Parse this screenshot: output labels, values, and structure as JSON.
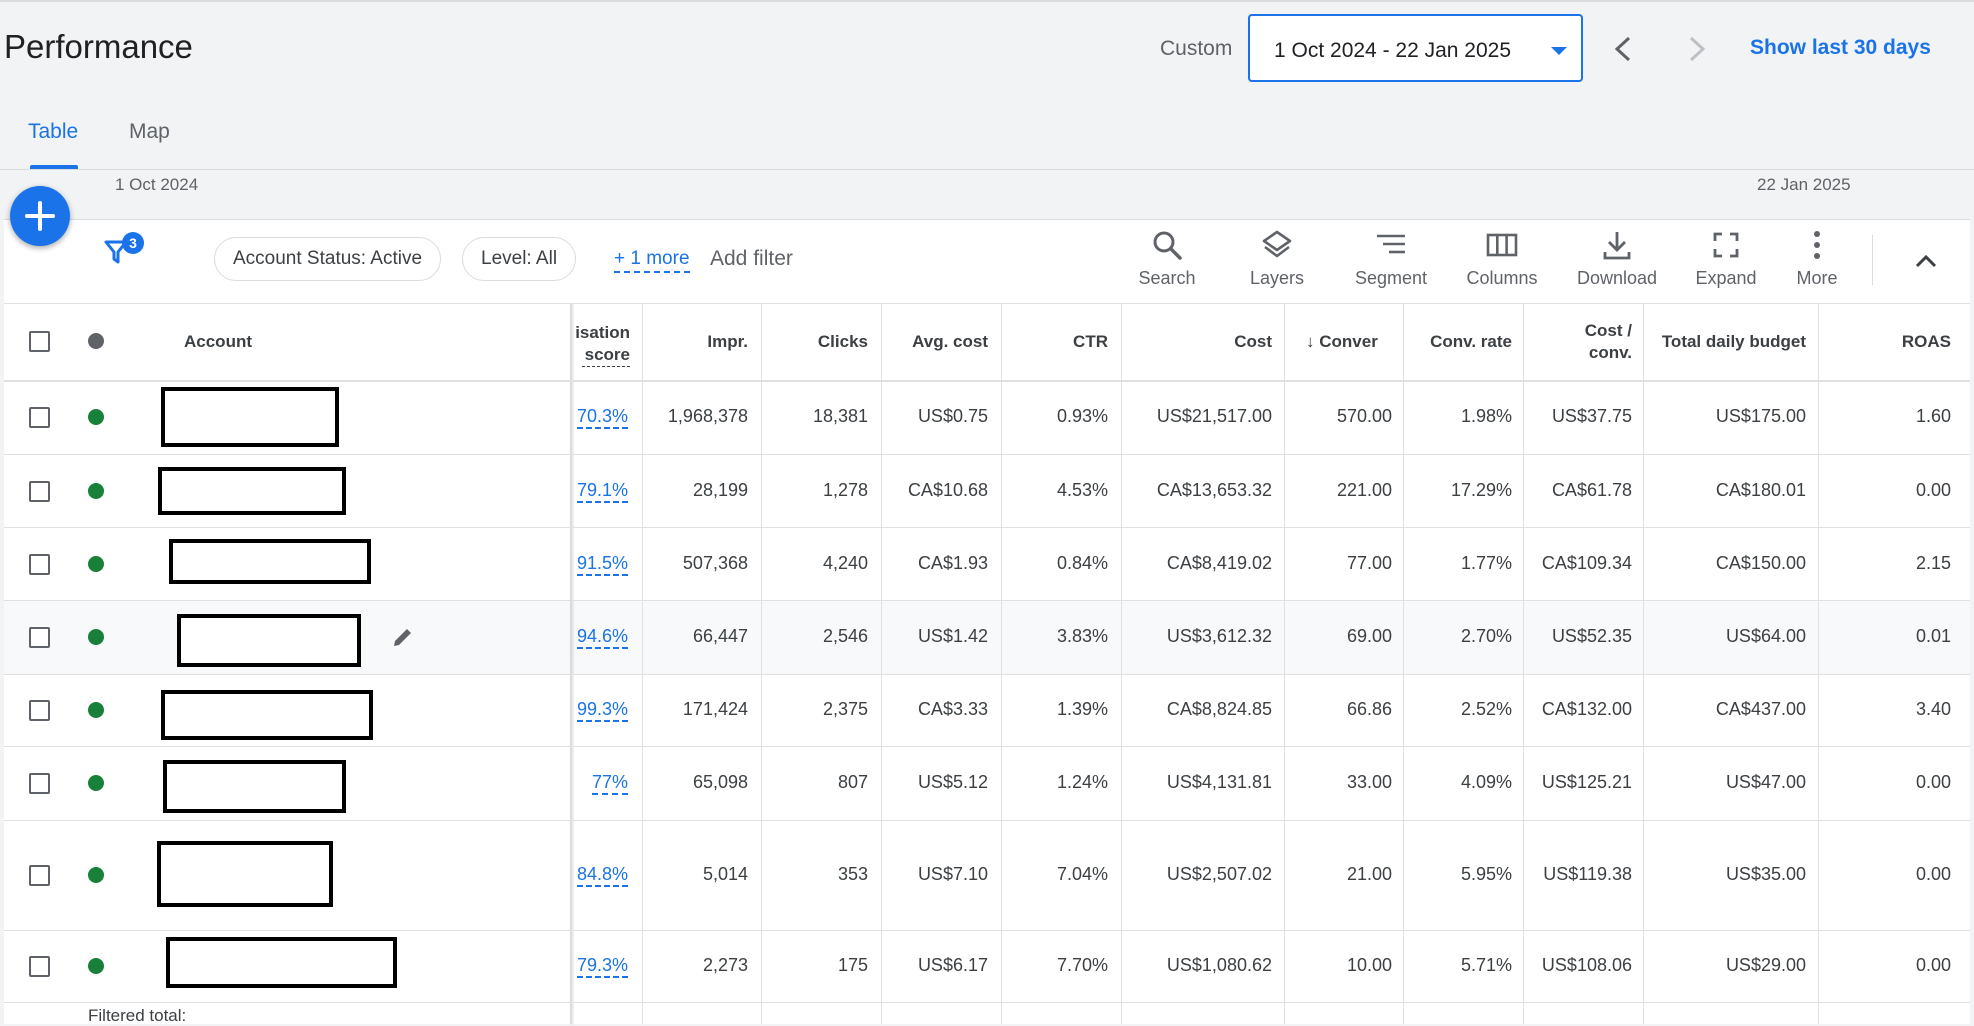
{
  "header": {
    "title": "Performance",
    "custom_label": "Custom",
    "date_range": "1 Oct 2024 - 22 Jan 2025",
    "show_last_label": "Show last 30 days"
  },
  "tabs": [
    {
      "label": "Table",
      "active": true
    },
    {
      "label": "Map",
      "active": false
    }
  ],
  "chart_strip": {
    "start_date": "1 Oct 2024",
    "end_date": "22 Jan 2025"
  },
  "filters": {
    "count_badge": "3",
    "chips": [
      "Account Status: Active",
      "Level: All"
    ],
    "more_label": "+ 1 more",
    "add_filter_label": "Add filter"
  },
  "toolbar": {
    "tools": [
      {
        "label": "Search",
        "icon": "search-icon"
      },
      {
        "label": "Layers",
        "icon": "layers-icon"
      },
      {
        "label": "Segment",
        "icon": "segment-icon"
      },
      {
        "label": "Columns",
        "icon": "columns-icon"
      },
      {
        "label": "Download",
        "icon": "download-icon"
      },
      {
        "label": "Expand",
        "icon": "expand-icon"
      },
      {
        "label": "More",
        "icon": "more-vert-icon"
      }
    ]
  },
  "table": {
    "headers": {
      "account": "Account",
      "opt_score_line1": "isation",
      "opt_score_line2": "score",
      "impr": "Impr.",
      "clicks": "Clicks",
      "avg_cost": "Avg. cost",
      "ctr": "CTR",
      "cost": "Cost",
      "conversions": "Conver",
      "conv_rate": "Conv. rate",
      "cost_conv_line1": "Cost /",
      "cost_conv_line2": "conv.",
      "daily_budget": "Total daily budget",
      "roas": "ROAS"
    },
    "rows": [
      {
        "score": "70.3%",
        "impr": "1,968,378",
        "clicks": "18,381",
        "avg_cost": "US$0.75",
        "ctr": "0.93%",
        "cost": "US$21,517.00",
        "conv": "570.00",
        "conv_rate": "1.98%",
        "cost_conv": "US$37.75",
        "budget": "US$175.00",
        "roas": "1.60"
      },
      {
        "score": "79.1%",
        "impr": "28,199",
        "clicks": "1,278",
        "avg_cost": "CA$10.68",
        "ctr": "4.53%",
        "cost": "CA$13,653.32",
        "conv": "221.00",
        "conv_rate": "17.29%",
        "cost_conv": "CA$61.78",
        "budget": "CA$180.01",
        "roas": "0.00"
      },
      {
        "score": "91.5%",
        "impr": "507,368",
        "clicks": "4,240",
        "avg_cost": "CA$1.93",
        "ctr": "0.84%",
        "cost": "CA$8,419.02",
        "conv": "77.00",
        "conv_rate": "1.77%",
        "cost_conv": "CA$109.34",
        "budget": "CA$150.00",
        "roas": "2.15"
      },
      {
        "score": "94.6%",
        "impr": "66,447",
        "clicks": "2,546",
        "avg_cost": "US$1.42",
        "ctr": "3.83%",
        "cost": "US$3,612.32",
        "conv": "69.00",
        "conv_rate": "2.70%",
        "cost_conv": "US$52.35",
        "budget": "US$64.00",
        "roas": "0.01"
      },
      {
        "score": "99.3%",
        "impr": "171,424",
        "clicks": "2,375",
        "avg_cost": "CA$3.33",
        "ctr": "1.39%",
        "cost": "CA$8,824.85",
        "conv": "66.86",
        "conv_rate": "2.52%",
        "cost_conv": "CA$132.00",
        "budget": "CA$437.00",
        "roas": "3.40"
      },
      {
        "score": "77%",
        "impr": "65,098",
        "clicks": "807",
        "avg_cost": "US$5.12",
        "ctr": "1.24%",
        "cost": "US$4,131.81",
        "conv": "33.00",
        "conv_rate": "4.09%",
        "cost_conv": "US$125.21",
        "budget": "US$47.00",
        "roas": "0.00"
      },
      {
        "score": "84.8%",
        "impr": "5,014",
        "clicks": "353",
        "avg_cost": "US$7.10",
        "ctr": "7.04%",
        "cost": "US$2,507.02",
        "conv": "21.00",
        "conv_rate": "5.95%",
        "cost_conv": "US$119.38",
        "budget": "US$35.00",
        "roas": "0.00"
      },
      {
        "score": "79.3%",
        "impr": "2,273",
        "clicks": "175",
        "avg_cost": "US$6.17",
        "ctr": "7.70%",
        "cost": "US$1,080.62",
        "conv": "10.00",
        "conv_rate": "5.71%",
        "cost_conv": "US$108.06",
        "budget": "US$29.00",
        "roas": "0.00"
      }
    ],
    "footer_label": "Filtered total:"
  },
  "colors": {
    "accent": "#1a73e8",
    "status_enabled": "#188038"
  }
}
